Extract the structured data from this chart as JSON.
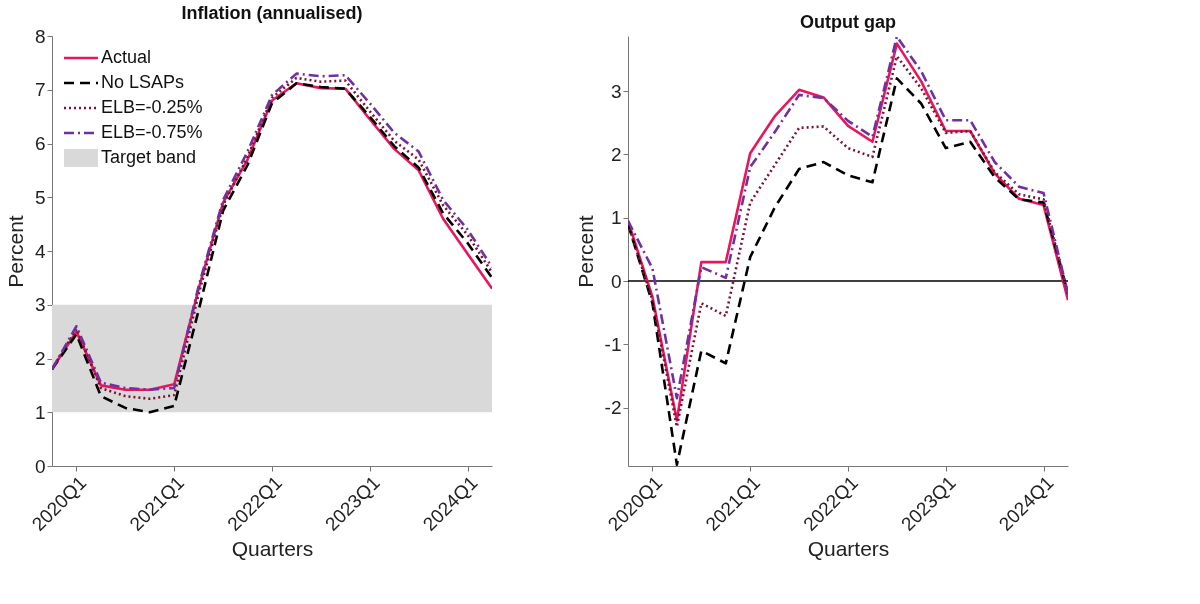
{
  "chart_data": [
    {
      "type": "line",
      "title": "Inflation (annualised)",
      "xlabel": "Quarters",
      "ylabel": "Percent",
      "categories": [
        null,
        "2020Q1",
        null,
        null,
        null,
        "2021Q1",
        null,
        null,
        null,
        "2022Q1",
        null,
        null,
        null,
        "2023Q1",
        null,
        null,
        null,
        "2024Q1",
        null
      ],
      "ylim": [
        0,
        8
      ],
      "yticks": [
        0,
        1,
        2,
        3,
        4,
        5,
        6,
        7,
        8
      ],
      "grid": false,
      "legend": "top left",
      "bands": [
        {
          "axis": "y",
          "from": 1,
          "to": 3,
          "label": "Target band",
          "color": "#d9d9d9"
        }
      ],
      "series": [
        {
          "name": "Actual",
          "color": "#e8175d",
          "line_style": "solid",
          "values": [
            1.8,
            2.5,
            1.5,
            1.42,
            1.42,
            1.52,
            3.3,
            4.9,
            5.7,
            6.8,
            7.12,
            7.03,
            7.02,
            6.45,
            5.9,
            5.5,
            4.6,
            3.95,
            3.3
          ]
        },
        {
          "name": "No LSAPs",
          "color": "#000000",
          "line_style": "dashed",
          "values": [
            1.8,
            2.45,
            1.3,
            1.08,
            1.0,
            1.12,
            2.9,
            4.75,
            5.6,
            6.75,
            7.12,
            7.05,
            7.02,
            6.5,
            5.95,
            5.55,
            4.7,
            4.15,
            3.5
          ]
        },
        {
          "name": "ELB=-0.25%",
          "color": "#7b1230",
          "line_style": "dotted",
          "values": [
            1.8,
            2.55,
            1.45,
            1.3,
            1.25,
            1.32,
            3.2,
            4.85,
            5.75,
            6.85,
            7.22,
            7.15,
            7.17,
            6.6,
            6.05,
            5.7,
            4.85,
            4.3,
            3.6
          ]
        },
        {
          "name": "ELB=-0.75%",
          "color": "#7030a0",
          "line_style": "dashdot",
          "values": [
            1.8,
            2.6,
            1.55,
            1.45,
            1.42,
            1.45,
            3.35,
            4.95,
            5.85,
            6.9,
            7.3,
            7.25,
            7.27,
            6.75,
            6.2,
            5.85,
            4.95,
            4.4,
            3.7
          ]
        }
      ]
    },
    {
      "type": "line",
      "title": "Output gap",
      "xlabel": "Quarters",
      "ylabel": "Percent",
      "categories": [
        null,
        "2020Q1",
        null,
        null,
        null,
        "2021Q1",
        null,
        null,
        null,
        "2022Q1",
        null,
        null,
        null,
        "2023Q1",
        null,
        null,
        null,
        "2024Q1",
        null
      ],
      "ylim": [
        -2.92,
        3.87
      ],
      "yticks": [
        -2,
        -1,
        0,
        1,
        2,
        3
      ],
      "grid": false,
      "ref_lines": [
        {
          "axis": "y",
          "value": 0,
          "color": "#000000"
        }
      ],
      "series": [
        {
          "color": "#e8175d",
          "line_style": "solid",
          "values": [
            0.95,
            -0.25,
            -2.2,
            0.3,
            0.3,
            2.02,
            2.6,
            3.02,
            2.9,
            2.45,
            2.2,
            3.75,
            3.15,
            2.37,
            2.37,
            1.7,
            1.3,
            1.2,
            -0.3
          ]
        },
        {
          "color": "#000000",
          "line_style": "dashed",
          "values": [
            0.9,
            -0.35,
            -2.9,
            -1.1,
            -1.3,
            0.38,
            1.16,
            1.77,
            1.88,
            1.67,
            1.56,
            3.2,
            2.8,
            2.1,
            2.2,
            1.64,
            1.29,
            1.24,
            -0.2
          ]
        },
        {
          "color": "#7b1230",
          "line_style": "dotted",
          "values": [
            0.9,
            -0.3,
            -2.3,
            -0.35,
            -0.55,
            1.24,
            1.83,
            2.42,
            2.44,
            2.1,
            1.96,
            3.55,
            3.04,
            2.34,
            2.37,
            1.72,
            1.37,
            1.29,
            -0.2
          ]
        },
        {
          "color": "#7030a0",
          "line_style": "dashdot",
          "values": [
            0.95,
            0.2,
            -1.85,
            0.22,
            0.05,
            1.8,
            2.35,
            2.94,
            2.89,
            2.53,
            2.28,
            3.86,
            3.31,
            2.54,
            2.54,
            1.88,
            1.49,
            1.39,
            -0.2
          ]
        }
      ]
    }
  ]
}
